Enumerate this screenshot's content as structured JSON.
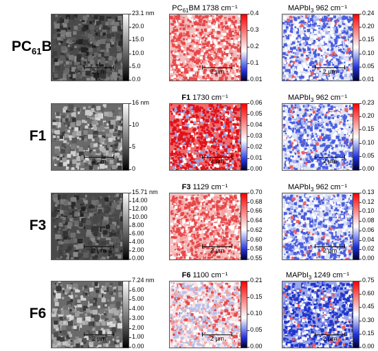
{
  "rows": [
    {
      "label": "PC61BM",
      "label_main": "PC",
      "label_sub": "61",
      "label_tail": "BM",
      "afm": {
        "unit_top": "23.1 nm",
        "ticks": [
          "20.0",
          "15.0",
          "10.0",
          "5.0",
          "0.0"
        ],
        "tone": "dark"
      },
      "ir": {
        "title_pre": "PC",
        "title_sub": "61",
        "title_rest": "BM 1738 cm⁻¹",
        "title_bold": "",
        "ticks": [
          "0.4",
          "0.3",
          "0.2",
          "0.1",
          "0.01"
        ],
        "style": "red"
      },
      "mapi": {
        "title_pre": "MAPbI",
        "title_sub": "3",
        "title_rest": " 962 cm⁻¹",
        "ticks": [
          "0.24",
          "0.20",
          "0.15",
          "0.10",
          "0.05",
          "0.01"
        ],
        "style": "blue"
      },
      "scale": "2 µm"
    },
    {
      "label": "F1",
      "afm": {
        "unit_top": "16 nm",
        "ticks": [
          "10",
          "5",
          "0"
        ],
        "tone": "grains"
      },
      "ir": {
        "title_bold": "F1",
        "title_rest": " 1730 cm⁻¹",
        "ticks": [
          "0.06",
          "0.05",
          "0.04",
          "0.03",
          "0.02",
          "0.01",
          "0.00"
        ],
        "style": "hot"
      },
      "mapi": {
        "title_pre": "MAPbI",
        "title_sub": "3",
        "title_rest": " 962 cm⁻¹",
        "ticks": [
          "0.23",
          "0.20",
          "0.15",
          "0.10",
          "0.05",
          "0.00"
        ],
        "style": "blue"
      },
      "scale": "2 µm"
    },
    {
      "label": "F3",
      "afm": {
        "unit_top": "15.71 nm",
        "ticks": [
          "14.00",
          "12.00",
          "10.00",
          "8.00",
          "6.00",
          "4.00",
          "2.00",
          "0.00"
        ],
        "tone": "dark"
      },
      "ir": {
        "title_bold": "F3",
        "title_rest": " 1129 cm⁻¹",
        "ticks": [
          "0.70",
          "0.68",
          "0.66",
          "0.64",
          "0.62",
          "0.60",
          "0.58",
          "0.55"
        ],
        "style": "red"
      },
      "mapi": {
        "title_pre": "MAPbI",
        "title_sub": "3",
        "title_rest": " 962 cm⁻¹",
        "ticks": [
          "0.13",
          "0.12",
          "0.10",
          "0.08",
          "0.06",
          "0.04",
          "0.02",
          "0.00"
        ],
        "style": "blue"
      },
      "scale": "2 µm"
    },
    {
      "label": "F6",
      "afm": {
        "unit_top": "7.24 nm",
        "ticks": [
          "6.00",
          "5.00",
          "4.00",
          "3.00",
          "2.00",
          "1.00",
          "0.00"
        ],
        "tone": "grains"
      },
      "ir": {
        "title_bold": "F6",
        "title_rest": " 1100 cm⁻¹",
        "ticks": [
          "0.21",
          "0.15",
          "0.10",
          "0.05",
          "0.00"
        ],
        "style": "light"
      },
      "mapi": {
        "title_pre": "MAPbI",
        "title_sub": "3",
        "title_rest": " 1249 cm⁻¹",
        "ticks": [
          "0.75",
          "0.60",
          "0.45",
          "0.30",
          "0.15",
          "0.00"
        ],
        "style": "deepblue"
      },
      "scale": "2 µm"
    }
  ]
}
